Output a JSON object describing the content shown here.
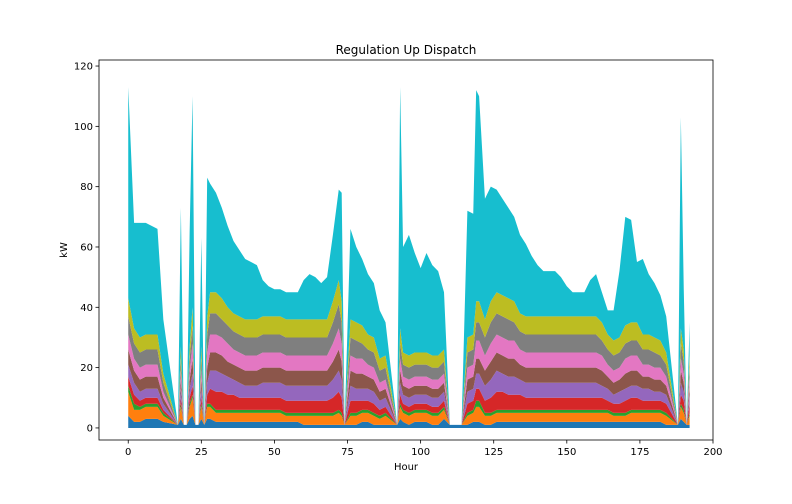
{
  "chart_data": {
    "type": "area",
    "stacked": true,
    "title": "Regulation Up Dispatch",
    "xlabel": "Hour",
    "ylabel": "kW",
    "xlim": [
      -10,
      200
    ],
    "ylim": [
      -4,
      122
    ],
    "xticks": [
      0,
      25,
      50,
      75,
      100,
      125,
      150,
      175,
      200
    ],
    "yticks": [
      0,
      20,
      40,
      60,
      80,
      100,
      120
    ],
    "grid": false,
    "legend": "none",
    "colors": [
      "#1f77b4",
      "#ff7f0e",
      "#2ca02c",
      "#d62728",
      "#9467bd",
      "#8c564b",
      "#e377c2",
      "#7f7f7f",
      "#bcbd22",
      "#17becf"
    ],
    "x": [
      0,
      2,
      4,
      6,
      8,
      10,
      12,
      17,
      18,
      19,
      20,
      21,
      22,
      23,
      24,
      25,
      26,
      27,
      28,
      30,
      32,
      34,
      36,
      38,
      40,
      42,
      44,
      46,
      48,
      50,
      52,
      54,
      56,
      58,
      60,
      62,
      64,
      66,
      68,
      70,
      72,
      73,
      74,
      76,
      78,
      80,
      82,
      84,
      86,
      88,
      92,
      93,
      94,
      96,
      98,
      100,
      102,
      104,
      106,
      108,
      110,
      114,
      116,
      118,
      119,
      120,
      122,
      124,
      126,
      128,
      130,
      132,
      134,
      136,
      138,
      140,
      142,
      144,
      146,
      148,
      150,
      152,
      154,
      156,
      158,
      160,
      162,
      164,
      166,
      168,
      170,
      172,
      174,
      176,
      178,
      180,
      182,
      184,
      188,
      189,
      190,
      191,
      192
    ],
    "series": [
      {
        "values": [
          4,
          2,
          2,
          3,
          3,
          3,
          2,
          1,
          3,
          1,
          1,
          3,
          4,
          1,
          1,
          3,
          1,
          3,
          3,
          2,
          2,
          2,
          2,
          2,
          2,
          2,
          2,
          2,
          2,
          2,
          2,
          2,
          2,
          2,
          1,
          1,
          1,
          1,
          1,
          1,
          1,
          1,
          1,
          1,
          1,
          2,
          2,
          1,
          1,
          1,
          1,
          3,
          2,
          1,
          2,
          2,
          2,
          1,
          1,
          3,
          1,
          1,
          1,
          2,
          2,
          2,
          1,
          1,
          2,
          2,
          2,
          2,
          2,
          2,
          2,
          2,
          2,
          2,
          2,
          2,
          2,
          2,
          2,
          2,
          2,
          2,
          2,
          2,
          2,
          2,
          2,
          2,
          2,
          2,
          2,
          2,
          2,
          1,
          1,
          3,
          2,
          1,
          1
        ]
      },
      {
        "values": [
          8,
          4,
          4,
          4,
          4,
          4,
          2,
          0,
          4,
          0,
          0,
          4,
          6,
          0,
          0,
          4,
          0,
          4,
          4,
          3,
          3,
          3,
          3,
          3,
          3,
          3,
          3,
          3,
          3,
          3,
          3,
          2,
          2,
          2,
          3,
          3,
          3,
          3,
          3,
          3,
          4,
          3,
          0,
          3,
          3,
          3,
          3,
          3,
          2,
          3,
          0,
          4,
          3,
          3,
          3,
          3,
          3,
          3,
          3,
          3,
          0,
          0,
          3,
          3,
          5,
          5,
          3,
          3,
          3,
          3,
          3,
          3,
          3,
          3,
          3,
          3,
          3,
          3,
          3,
          3,
          3,
          3,
          3,
          3,
          3,
          3,
          3,
          3,
          2,
          2,
          2,
          3,
          3,
          3,
          3,
          3,
          3,
          3,
          0,
          4,
          3,
          0,
          3
        ]
      },
      {
        "values": [
          2,
          2,
          1,
          1,
          1,
          1,
          1,
          0,
          1,
          0,
          0,
          1,
          1,
          0,
          0,
          1,
          0,
          1,
          1,
          1,
          1,
          1,
          1,
          1,
          1,
          1,
          1,
          1,
          1,
          1,
          1,
          1,
          1,
          1,
          1,
          1,
          1,
          1,
          1,
          1,
          1,
          1,
          0,
          1,
          1,
          1,
          1,
          1,
          1,
          1,
          0,
          1,
          1,
          1,
          1,
          1,
          1,
          1,
          1,
          1,
          0,
          0,
          1,
          1,
          2,
          2,
          1,
          1,
          1,
          1,
          1,
          1,
          1,
          1,
          1,
          1,
          1,
          1,
          1,
          1,
          1,
          1,
          1,
          1,
          1,
          1,
          1,
          1,
          1,
          1,
          1,
          1,
          1,
          1,
          1,
          1,
          1,
          1,
          0,
          1,
          1,
          0,
          1
        ]
      },
      {
        "values": [
          3,
          3,
          2,
          2,
          2,
          2,
          1,
          0,
          2,
          0,
          0,
          2,
          3,
          0,
          0,
          2,
          0,
          3,
          5,
          6,
          6,
          5,
          5,
          4,
          4,
          4,
          4,
          4,
          4,
          4,
          4,
          4,
          4,
          4,
          4,
          4,
          4,
          4,
          4,
          5,
          6,
          5,
          0,
          4,
          4,
          3,
          3,
          3,
          2,
          2,
          0,
          3,
          2,
          2,
          2,
          2,
          2,
          2,
          2,
          2,
          0,
          0,
          3,
          3,
          4,
          4,
          4,
          5,
          6,
          6,
          5,
          5,
          5,
          4,
          4,
          4,
          4,
          4,
          4,
          4,
          4,
          4,
          4,
          4,
          4,
          4,
          4,
          3,
          3,
          3,
          4,
          4,
          4,
          3,
          3,
          3,
          3,
          3,
          0,
          3,
          3,
          0,
          3
        ]
      },
      {
        "values": [
          4,
          4,
          3,
          3,
          3,
          3,
          2,
          0,
          3,
          0,
          0,
          3,
          4,
          0,
          0,
          3,
          0,
          4,
          6,
          7,
          6,
          6,
          5,
          5,
          4,
          4,
          4,
          5,
          5,
          5,
          5,
          5,
          5,
          5,
          5,
          5,
          5,
          5,
          5,
          6,
          7,
          6,
          0,
          5,
          4,
          4,
          4,
          4,
          3,
          3,
          0,
          4,
          3,
          3,
          3,
          3,
          3,
          3,
          3,
          3,
          0,
          0,
          4,
          4,
          5,
          5,
          5,
          6,
          7,
          6,
          6,
          6,
          5,
          5,
          5,
          5,
          5,
          5,
          5,
          5,
          5,
          5,
          5,
          5,
          5,
          5,
          4,
          4,
          3,
          4,
          4,
          4,
          4,
          4,
          4,
          3,
          3,
          3,
          0,
          4,
          3,
          0,
          3
        ]
      },
      {
        "values": [
          5,
          4,
          4,
          4,
          4,
          4,
          2,
          0,
          3,
          0,
          0,
          3,
          5,
          0,
          0,
          3,
          0,
          5,
          6,
          6,
          6,
          5,
          5,
          5,
          5,
          5,
          5,
          5,
          5,
          5,
          5,
          5,
          5,
          5,
          5,
          5,
          5,
          5,
          5,
          6,
          7,
          6,
          0,
          5,
          5,
          5,
          4,
          4,
          3,
          3,
          0,
          4,
          3,
          3,
          3,
          3,
          3,
          3,
          3,
          3,
          0,
          0,
          4,
          4,
          5,
          5,
          5,
          6,
          6,
          6,
          6,
          6,
          5,
          5,
          5,
          5,
          5,
          5,
          5,
          5,
          5,
          5,
          5,
          5,
          5,
          5,
          5,
          4,
          4,
          4,
          5,
          5,
          5,
          4,
          4,
          4,
          4,
          3,
          0,
          4,
          3,
          0,
          3
        ]
      },
      {
        "values": [
          5,
          4,
          4,
          4,
          4,
          4,
          2,
          0,
          3,
          0,
          0,
          3,
          5,
          0,
          0,
          3,
          0,
          5,
          6,
          6,
          6,
          6,
          5,
          5,
          5,
          5,
          5,
          5,
          5,
          5,
          5,
          5,
          5,
          5,
          5,
          5,
          5,
          5,
          5,
          6,
          7,
          6,
          0,
          5,
          5,
          5,
          4,
          4,
          3,
          3,
          0,
          4,
          3,
          3,
          3,
          3,
          3,
          3,
          3,
          3,
          0,
          0,
          4,
          4,
          6,
          6,
          5,
          6,
          6,
          6,
          6,
          6,
          5,
          5,
          5,
          5,
          5,
          5,
          5,
          5,
          5,
          5,
          5,
          5,
          5,
          5,
          5,
          4,
          4,
          4,
          5,
          5,
          5,
          4,
          4,
          4,
          4,
          3,
          0,
          4,
          3,
          0,
          3
        ]
      },
      {
        "values": [
          6,
          5,
          5,
          5,
          5,
          5,
          3,
          0,
          4,
          0,
          0,
          4,
          6,
          0,
          0,
          4,
          0,
          6,
          7,
          7,
          6,
          6,
          6,
          6,
          6,
          6,
          6,
          6,
          6,
          6,
          6,
          6,
          6,
          6,
          6,
          6,
          6,
          6,
          6,
          7,
          8,
          7,
          0,
          6,
          6,
          5,
          5,
          5,
          4,
          4,
          0,
          5,
          4,
          4,
          4,
          4,
          4,
          4,
          4,
          4,
          0,
          0,
          5,
          5,
          6,
          6,
          6,
          7,
          7,
          7,
          7,
          6,
          6,
          6,
          6,
          6,
          6,
          6,
          6,
          6,
          6,
          6,
          6,
          6,
          6,
          6,
          5,
          5,
          5,
          5,
          5,
          5,
          5,
          5,
          5,
          5,
          4,
          4,
          0,
          5,
          4,
          0,
          4
        ]
      },
      {
        "values": [
          6,
          5,
          5,
          5,
          5,
          5,
          3,
          0,
          4,
          0,
          0,
          4,
          6,
          0,
          0,
          4,
          0,
          6,
          7,
          7,
          7,
          6,
          6,
          6,
          6,
          6,
          6,
          6,
          6,
          6,
          6,
          6,
          6,
          6,
          6,
          6,
          6,
          6,
          6,
          7,
          8,
          7,
          0,
          6,
          6,
          6,
          5,
          5,
          4,
          4,
          0,
          5,
          4,
          4,
          4,
          4,
          4,
          4,
          4,
          4,
          0,
          0,
          5,
          5,
          7,
          7,
          6,
          7,
          7,
          7,
          7,
          7,
          6,
          6,
          6,
          6,
          6,
          6,
          6,
          6,
          6,
          6,
          6,
          6,
          6,
          6,
          6,
          5,
          5,
          5,
          6,
          6,
          6,
          5,
          5,
          5,
          5,
          4,
          0,
          5,
          4,
          0,
          4
        ]
      },
      {
        "values": [
          70,
          35,
          38,
          37,
          36,
          35,
          18,
          0,
          46,
          0,
          0,
          38,
          70,
          0,
          0,
          36,
          0,
          46,
          36,
          33,
          30,
          27,
          24,
          22,
          20,
          19,
          18,
          12,
          10,
          9,
          9,
          9,
          9,
          9,
          13,
          15,
          14,
          12,
          14,
          22,
          30,
          36,
          0,
          30,
          25,
          22,
          20,
          18,
          16,
          11,
          0,
          80,
          35,
          40,
          33,
          28,
          33,
          30,
          28,
          19,
          0,
          0,
          42,
          40,
          70,
          68,
          40,
          38,
          34,
          32,
          30,
          28,
          26,
          24,
          20,
          17,
          15,
          15,
          15,
          13,
          10,
          8,
          8,
          8,
          12,
          14,
          10,
          8,
          10,
          22,
          36,
          34,
          20,
          25,
          20,
          18,
          15,
          12,
          0,
          70,
          20,
          0,
          10
        ]
      }
    ]
  }
}
